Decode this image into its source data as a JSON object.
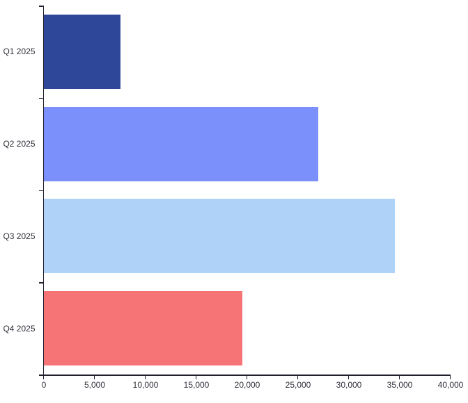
{
  "chart_data": {
    "type": "bar",
    "orientation": "horizontal",
    "title": "",
    "xlabel": "",
    "ylabel": "",
    "categories": [
      "Q1 2025",
      "Q2 2025",
      "Q3 2025",
      "Q4 2025"
    ],
    "values": [
      7500,
      27000,
      34500,
      19500
    ],
    "bar_colors": [
      "#2e4799",
      "#7b90fa",
      "#aed2f8",
      "#f67475"
    ],
    "xlim": [
      0,
      40000
    ],
    "x_tick_step": 5000,
    "x_tick_labels": [
      "0",
      "5,000",
      "10,000",
      "15,000",
      "20,000",
      "25,000",
      "30,000",
      "35,000",
      "40,000"
    ],
    "grid": false,
    "legend": false,
    "axis_color": "#1f1f2e",
    "label_color": "#31313c",
    "background": "#ffffff"
  }
}
